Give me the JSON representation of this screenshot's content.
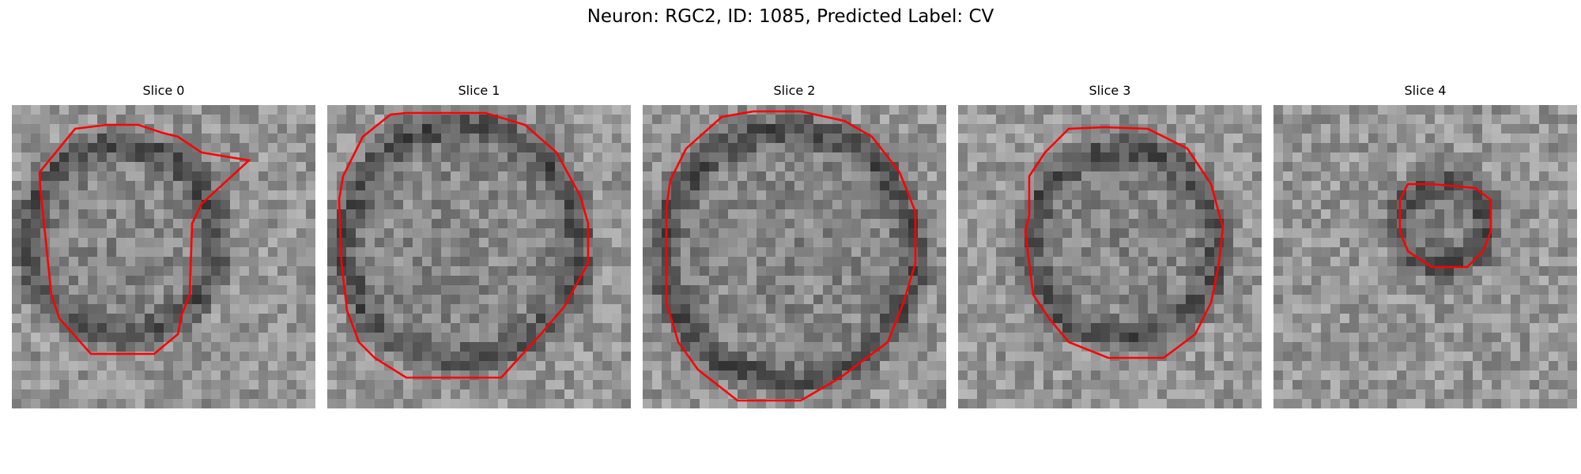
{
  "figure": {
    "title": "Neuron: RGC2, ID: 1085, Predicted Label: CV"
  },
  "panels": [
    {
      "title": "Slice 0",
      "image_description": "grayscale microscopy slice"
    },
    {
      "title": "Slice 1",
      "image_description": "grayscale microscopy slice"
    },
    {
      "title": "Slice 2",
      "image_description": "grayscale microscopy slice"
    },
    {
      "title": "Slice 3",
      "image_description": "grayscale microscopy slice"
    },
    {
      "title": "Slice 4",
      "image_description": "grayscale microscopy slice"
    }
  ],
  "colors": {
    "contour": "#ff0000",
    "background": "#ffffff"
  }
}
